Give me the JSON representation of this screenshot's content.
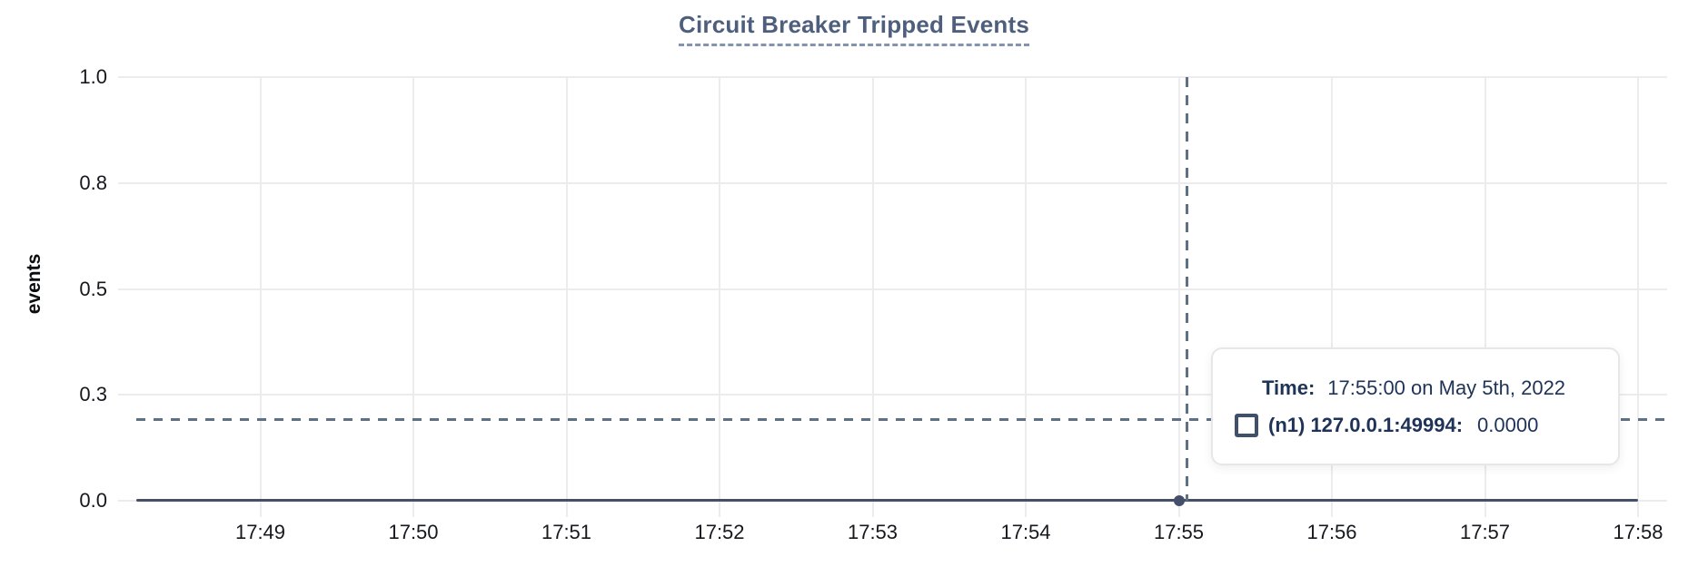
{
  "chart_data": {
    "type": "line",
    "title": "Circuit Breaker Tripped Events",
    "xlabel": "",
    "ylabel": "events",
    "x_ticks": [
      "17:49",
      "17:50",
      "17:51",
      "17:52",
      "17:53",
      "17:54",
      "17:55",
      "17:56",
      "17:57",
      "17:58"
    ],
    "y_ticks": [
      {
        "value": 0.0,
        "label": "0.0"
      },
      {
        "value": 0.25,
        "label": "0.3"
      },
      {
        "value": 0.5,
        "label": "0.5"
      },
      {
        "value": 0.75,
        "label": "0.8"
      },
      {
        "value": 1.0,
        "label": "1.0"
      }
    ],
    "ylim": [
      0,
      1
    ],
    "grid": true,
    "legend_position": "tooltip",
    "series": [
      {
        "name": "(n1) 127.0.0.1:49994",
        "color": "#44506a",
        "constant_value": 0,
        "x_start": "17:48",
        "x_end": "17:58"
      }
    ],
    "hover_point": {
      "x": "17:55:00",
      "y": 0.0
    }
  },
  "tooltip": {
    "time_label": "Time:",
    "time_value": "17:55:00 on May 5th, 2022",
    "swatch_icon": "square-outline",
    "series_label": "(n1) 127.0.0.1:49994:",
    "series_value": "0.0000"
  },
  "colors": {
    "series": "#44506a",
    "crosshair": "#5d7084",
    "title": "#4e5f7e",
    "tooltip_text": "#1e3357",
    "tick_text": "#16181d",
    "grid": "#ececec"
  }
}
